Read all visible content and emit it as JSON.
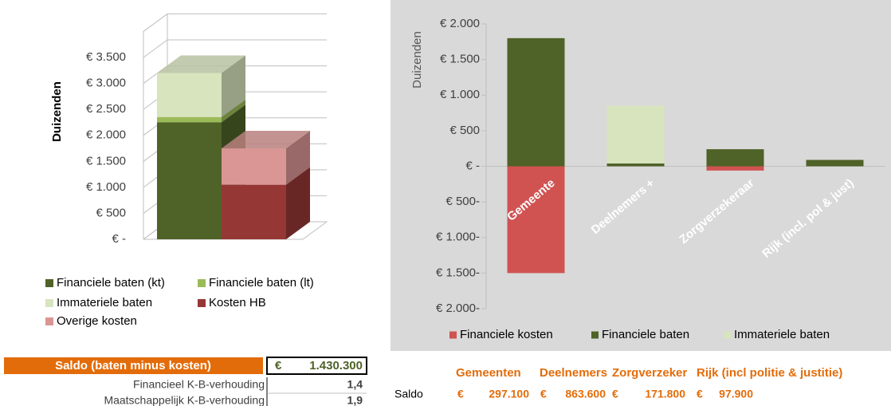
{
  "chart_data": [
    {
      "type": "bar3d",
      "y_label": "Duizenden",
      "stacked": true,
      "categories": [
        null,
        null
      ],
      "series": [
        {
          "name": "Financiele baten (kt)",
          "color": "#4f6228",
          "values": [
            2250,
            null
          ]
        },
        {
          "name": "Financiele baten (lt)",
          "color": "#9bbb59",
          "values": [
            100,
            null
          ]
        },
        {
          "name": "Immateriele baten",
          "color": "#d7e4bd",
          "values": [
            850,
            null
          ]
        },
        {
          "name": "Kosten HB",
          "color": "#953735",
          "values": [
            null,
            1050
          ]
        },
        {
          "name": "Overige kosten",
          "color": "#d99694",
          "values": [
            null,
            700
          ]
        }
      ],
      "ylim": [
        0,
        4000
      ],
      "yticks": [
        {
          "value": 0,
          "label": "€ -"
        },
        {
          "value": 500,
          "label": "€ 500"
        },
        {
          "value": 1000,
          "label": "€ 1.000"
        },
        {
          "value": 1500,
          "label": "€ 1.500"
        },
        {
          "value": 2000,
          "label": "€ 2.000"
        },
        {
          "value": 2500,
          "label": "€ 2.500"
        },
        {
          "value": 3000,
          "label": "€ 3.000"
        },
        {
          "value": 3500,
          "label": "€ 3.500"
        }
      ],
      "grid": true
    },
    {
      "type": "bar",
      "y_label": "Duizenden",
      "stacked": true,
      "categories": [
        "Gemeente",
        "Deelnemers +",
        "Zorgverzekeraar",
        "Rijk (incl. pol & just)"
      ],
      "series": [
        {
          "name": "Financiele kosten",
          "color": "#d05352",
          "values": [
            -1500,
            null,
            -60,
            null
          ]
        },
        {
          "name": "Financiele baten",
          "color": "#4f6228",
          "values": [
            1800,
            40,
            240,
            90
          ]
        },
        {
          "name": "Immateriele baten",
          "color": "#d7e4bd",
          "values": [
            null,
            810,
            null,
            null
          ]
        }
      ],
      "ylim": [
        -2000,
        2000
      ],
      "yticks": [
        {
          "value": -2000,
          "label": "€ 2.000-"
        },
        {
          "value": -1500,
          "label": "€ 1.500-"
        },
        {
          "value": -1000,
          "label": "€ 1.000-"
        },
        {
          "value": -500,
          "label": "€ 500-"
        },
        {
          "value": 0,
          "label": "€ -"
        },
        {
          "value": 500,
          "label": "€ 500"
        },
        {
          "value": 1000,
          "label": "€ 1.000"
        },
        {
          "value": 1500,
          "label": "€ 1.500"
        },
        {
          "value": 2000,
          "label": "€ 2.000"
        }
      ],
      "grid": false
    }
  ],
  "summary": {
    "label": "Saldo (baten minus kosten)",
    "currency": "€",
    "value": "1.430.300",
    "rows": [
      [
        "Financieel K-B-verhouding",
        "1,4"
      ],
      [
        "Maatschappelijk K-B-verhouding",
        "1,9"
      ]
    ]
  },
  "saldo_table": {
    "headers": [
      "Gemeenten",
      "Deelnemers",
      "Zorgverzeker",
      "Rijk (incl politie & justitie)"
    ],
    "row_label": "Saldo",
    "cells": [
      [
        "€",
        "297.100"
      ],
      [
        "€",
        "863.600"
      ],
      [
        "€",
        "171.800"
      ],
      [
        "€",
        "97.900"
      ]
    ]
  }
}
